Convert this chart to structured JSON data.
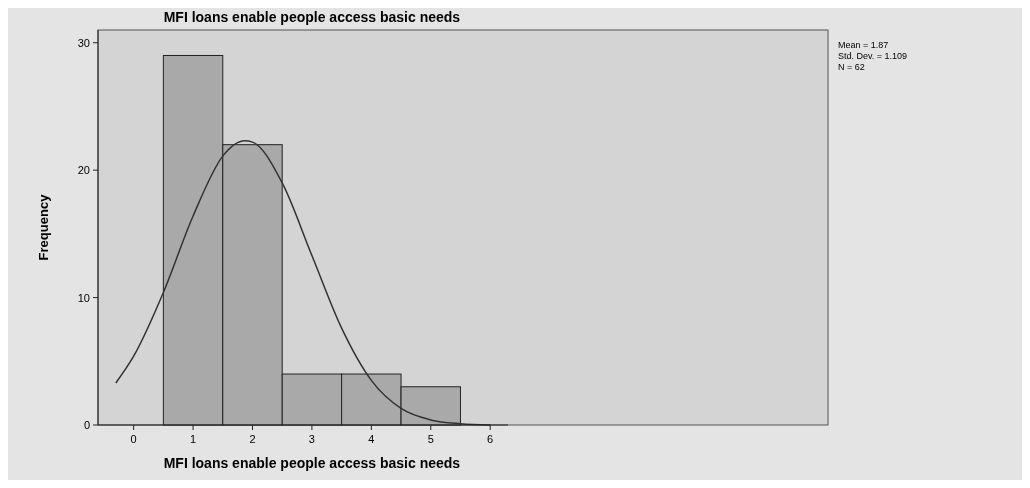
{
  "chart_data": {
    "type": "histogram",
    "title": "MFI loans enable people access basic needs",
    "xlabel": "MFI loans enable people access basic needs",
    "ylabel": "Frequency",
    "bins": [
      0.5,
      1.5,
      2.5,
      3.5,
      4.5,
      5.5
    ],
    "values": [
      29,
      22,
      4,
      4,
      3
    ],
    "color": "#a9a9a9",
    "series": [
      {
        "type": "line",
        "color": "#333333",
        "x": [
          -0.3,
          0,
          0.5,
          1,
          1.5,
          1.87,
          2,
          2.5,
          3,
          3.5,
          4,
          4.5,
          5,
          5.5,
          6
        ],
        "values": [
          3.3,
          5.4,
          10.4,
          16.4,
          21.1,
          22.3,
          22.2,
          19,
          13.3,
          7.6,
          3.5,
          1.3,
          0.4,
          0.1,
          0
        ]
      }
    ],
    "xlim": [
      -0.6,
      6.3
    ],
    "xticks": [
      0,
      1,
      2,
      3,
      4,
      5,
      6
    ],
    "ylim": [
      0,
      31
    ],
    "yticks": [
      0,
      10,
      20,
      30
    ],
    "annotations": [
      "Mean = 1.87",
      "Std. Dev. = 1.109",
      "N = 62"
    ]
  }
}
